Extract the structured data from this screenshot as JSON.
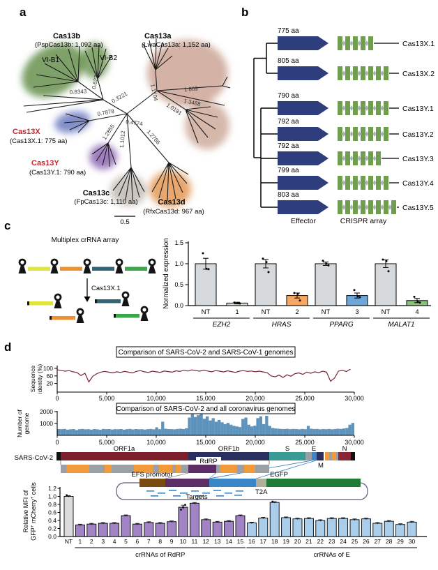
{
  "panels": {
    "a": "a",
    "b": "b",
    "c": "c",
    "d": "d"
  },
  "panel_a": {
    "clades": [
      {
        "name": "Cas13b",
        "detail": "(PspCas13b: 1,092 aa)",
        "color": "#5d8a42"
      },
      {
        "name": "Cas13a",
        "detail": "(LwaCas13a: 1,152 aa)",
        "color": "#c59a88"
      },
      {
        "name": "Cas13X",
        "detail": "(Cas13X.1: 775 aa)",
        "color": "#5a68b8"
      },
      {
        "name": "Cas13Y",
        "detail": "(Cas13Y.1: 790 aa)",
        "color": "#7e51a8"
      },
      {
        "name": "Cas13c",
        "detail": "(FpCas13c: 1,110 aa)",
        "color": "#b3aca4"
      },
      {
        "name": "Cas13d",
        "detail": "(RfxCas13d: 967 aa)",
        "color": "#df8a3e"
      }
    ],
    "subclade_labels": [
      "VI-B1",
      "VI-B2"
    ],
    "branch_lengths": [
      "0.6276",
      "0.8343",
      "0.3221",
      "0.7878",
      "0.4774",
      "1.2855",
      "1.1012",
      "1.2786",
      "1.1704",
      "1.809",
      "1.3488",
      "1.0181"
    ],
    "scale_bar": "0.5",
    "highlight_color": "#c1272d"
  },
  "panel_b": {
    "proteins": [
      {
        "label": "Cas13X.1",
        "aa": "775 aa",
        "repeats": 5
      },
      {
        "label": "Cas13X.2",
        "aa": "805 aa",
        "repeats": 7
      },
      {
        "label": "Cas13Y.1",
        "aa": "790 aa",
        "repeats": 7
      },
      {
        "label": "Cas13Y.2",
        "aa": "792 aa",
        "repeats": 7
      },
      {
        "label": "Cas13Y.3",
        "aa": "792 aa",
        "repeats": 6
      },
      {
        "label": "Cas13Y.4",
        "aa": "799 aa",
        "repeats": 7
      },
      {
        "label": "Cas13Y.5",
        "aa": "803 aa",
        "repeats": 8
      }
    ],
    "legend": {
      "effector": "Effector",
      "crispr": "CRISPR array"
    },
    "colors": {
      "effector": "#2e3d7c",
      "repeat": "#6f9e4e",
      "spacer": "#a9b0b8"
    }
  },
  "panel_c": {
    "diagram": {
      "title": "Multiplex crRNA array",
      "enzyme": "Cas13X.1",
      "segment_colors": [
        "#dfe63a",
        "#f0912f",
        "#2f6577",
        "#3aa94a"
      ]
    }
  },
  "panel_d": {
    "genome": {
      "virus_label": "SARS-CoV-2",
      "orf1a": "ORF1a",
      "orf1b": "ORF1b",
      "s": "S",
      "e": "E",
      "m": "M",
      "n": "N",
      "rdrp": "RdRP",
      "promoter": "EFS promotor",
      "reporter": "EGFP",
      "linker": "T2A",
      "targets": "Targets",
      "colors": {
        "orf1a": "#7b1f2b",
        "orf1b": "#2b2f5e",
        "s": "#3a9a94",
        "e": "#3f86c7",
        "m": "#2b2f5e",
        "n": "#8b2434",
        "accessory": "#f09a3c",
        "backbone": "#9aa0a6",
        "rdrp": "#5c2d66",
        "promoter": "#7b4a10",
        "target_e": "#3a87c8",
        "t2a": "#b0b09a",
        "egfp": "#1e7a34"
      }
    }
  },
  "chart_data": [
    {
      "id": "knockdown",
      "type": "bar",
      "ylabel": "Normalized expression",
      "ylim": [
        0,
        1.5
      ],
      "yticks": [
        0,
        0.5,
        1,
        1.5
      ],
      "groups": [
        {
          "gene": "EZH2",
          "bars": [
            {
              "label": "NT",
              "value": 1.0,
              "err": 0.13,
              "points": [
                1.25,
                0.88,
                0.87
              ],
              "color": "#d6d9db"
            },
            {
              "label": "1",
              "value": 0.06,
              "err": 0.02,
              "points": [
                0.07,
                0.06,
                0.05
              ],
              "color": "#d4e8d1"
            }
          ]
        },
        {
          "gene": "HRAS",
          "bars": [
            {
              "label": "NT",
              "value": 1.0,
              "err": 0.1,
              "points": [
                1.12,
                1.04,
                0.8
              ],
              "color": "#d6d9db"
            },
            {
              "label": "2",
              "value": 0.24,
              "err": 0.06,
              "points": [
                0.3,
                0.28,
                0.12
              ],
              "color": "#f6a763"
            }
          ]
        },
        {
          "gene": "PPARG",
          "bars": [
            {
              "label": "NT",
              "value": 1.0,
              "err": 0.04,
              "points": [
                1.07,
                1.0,
                0.96
              ],
              "color": "#d6d9db"
            },
            {
              "label": "3",
              "value": 0.24,
              "err": 0.06,
              "points": [
                0.37,
                0.22,
                0.2
              ],
              "color": "#6ea6d9"
            }
          ]
        },
        {
          "gene": "MALAT1",
          "bars": [
            {
              "label": "NT",
              "value": 1.0,
              "err": 0.09,
              "points": [
                1.1,
                1.06,
                0.82
              ],
              "color": "#d6d9db"
            },
            {
              "label": "4",
              "value": 0.12,
              "err": 0.05,
              "points": [
                0.21,
                0.1,
                0.07
              ],
              "color": "#8cc07c"
            }
          ]
        }
      ]
    },
    {
      "id": "identity",
      "type": "line",
      "title": "Comparison of SARS-CoV-2 and SARS-CoV-1 genomes",
      "ylabel_lines": [
        "Sequence",
        "identity (%)"
      ],
      "yticks": [
        100,
        60,
        20
      ],
      "xticks": [
        "0",
        "5,000",
        "10,000",
        "15,000",
        "20,000",
        "25,000",
        "30,000"
      ],
      "xlim": [
        0,
        30000
      ],
      "x_step": 400,
      "color": "#7b2430",
      "values": [
        93,
        88,
        85,
        88,
        82,
        78,
        62,
        74,
        28,
        58,
        72,
        80,
        84,
        80,
        76,
        82,
        78,
        84,
        80,
        76,
        84,
        88,
        82,
        78,
        85,
        82,
        79,
        86,
        83,
        80,
        87,
        84,
        90,
        86,
        92,
        88,
        85,
        90,
        86,
        82,
        88,
        85,
        81,
        87,
        83,
        79,
        85,
        88,
        84,
        86,
        82,
        85,
        81,
        77,
        60,
        55,
        64,
        52,
        66,
        58,
        72,
        76,
        68,
        80,
        74,
        82,
        77,
        85,
        80,
        32,
        48,
        85,
        90,
        83,
        96
      ]
    },
    {
      "id": "coverage",
      "type": "area",
      "title": "Comparison of SARS-CoV-2 and all coronavirus genomes",
      "ylabel_lines": [
        "Number of",
        "genome"
      ],
      "yticks": [
        1000,
        2000
      ],
      "xticks": [
        "0",
        "5,000",
        "10,000",
        "15,000",
        "20,000",
        "25,000",
        "30,000"
      ],
      "xlim": [
        0,
        30000
      ],
      "bin": 300,
      "color": "#5e93bb",
      "values": [
        530,
        520,
        540,
        480,
        510,
        530,
        450,
        520,
        540,
        510,
        520,
        480,
        530,
        510,
        470,
        540,
        520,
        530,
        490,
        520,
        510,
        530,
        480,
        520,
        540,
        500,
        530,
        510,
        520,
        490,
        520,
        540,
        510,
        680,
        520,
        1150,
        560,
        530,
        520,
        510,
        540,
        560,
        530,
        600,
        1500,
        1780,
        1550,
        1700,
        1820,
        1400,
        1600,
        1250,
        1450,
        1150,
        1300,
        1100,
        950,
        1050,
        900,
        800,
        750,
        700,
        1380,
        1500,
        900,
        750,
        820,
        1450,
        1600,
        950,
        1650,
        800,
        620,
        580,
        560,
        540,
        530,
        550,
        520,
        540,
        530,
        510,
        540,
        520,
        800,
        560,
        530,
        540,
        510,
        530,
        520,
        540,
        510,
        530,
        560,
        540,
        580,
        620,
        900,
        1050
      ]
    },
    {
      "id": "mfi",
      "type": "bar",
      "ylabel": [
        "Relative MFI of",
        "GFP+ mCherry+ cells"
      ],
      "yticks": [
        0,
        0.2,
        0.4,
        0.6,
        0.8,
        1.0,
        1.2
      ],
      "labels": [
        "NT",
        "1",
        "2",
        "3",
        "4",
        "5",
        "6",
        "7",
        "8",
        "9",
        "10",
        "11",
        "12",
        "13",
        "14",
        "15",
        "16",
        "17",
        "18",
        "19",
        "20",
        "21",
        "22",
        "23",
        "24",
        "25",
        "26",
        "27",
        "28",
        "29",
        "30"
      ],
      "values": [
        1.0,
        0.29,
        0.31,
        0.33,
        0.33,
        0.52,
        0.31,
        0.35,
        0.33,
        0.37,
        0.73,
        0.83,
        0.42,
        0.36,
        0.38,
        0.52,
        0.34,
        0.46,
        0.85,
        0.47,
        0.44,
        0.45,
        0.4,
        0.45,
        0.45,
        0.42,
        0.44,
        0.33,
        0.38,
        0.3,
        0.36
      ],
      "err_default": 0.018,
      "err_special": {
        "10": 0.05
      },
      "dots": [
        {
          "bar": "NT",
          "values": [
            1.03
          ]
        },
        {
          "bar": "10",
          "values": [
            0.67,
            0.73,
            0.79
          ]
        },
        {
          "bar": "18",
          "values": [
            0.87
          ]
        }
      ],
      "colors": {
        "nt": "#d9dbdd",
        "rdrp": "#a283c6",
        "e": "#a9cdea"
      },
      "groups": [
        {
          "label": "crRNAs of RdRP",
          "from": "1",
          "to": "15"
        },
        {
          "label": "crRNAs of E",
          "from": "16",
          "to": "30"
        }
      ]
    }
  ]
}
